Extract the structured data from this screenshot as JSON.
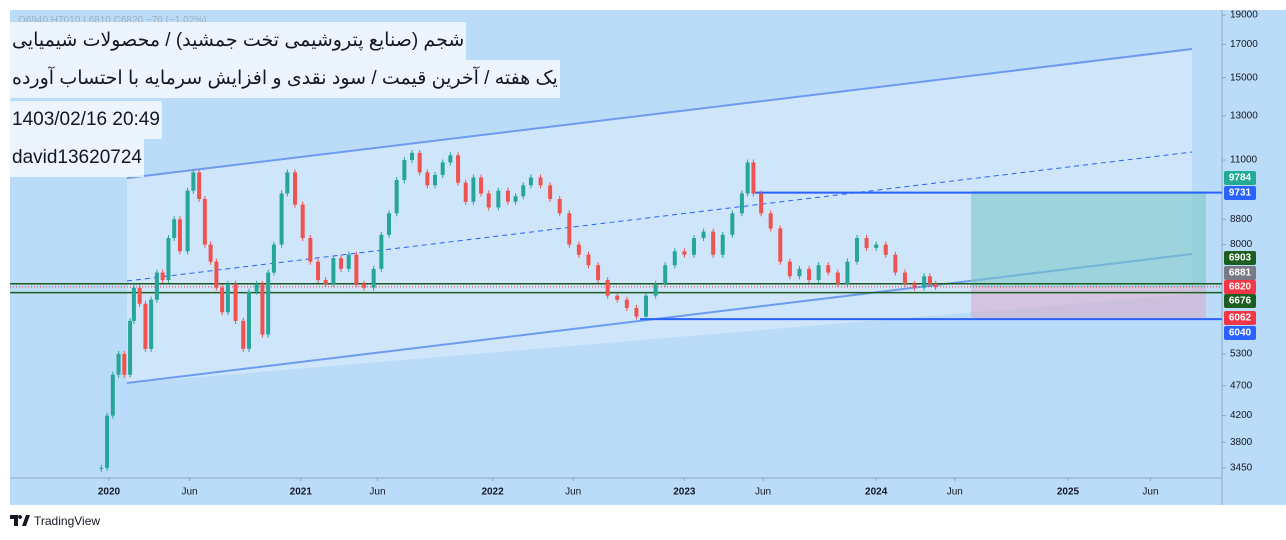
{
  "header": {
    "ohlc": "O6940 H7010 L6810 C6820 −70 (−1.02%)",
    "title": "شجم (صنایع پتروشیمی تخت جمشید) / محصولات شیمیایی",
    "subtitle": "یک هفته / آخرین قیمت / سود نقدی و افزایش سرمایه با احتساب آورده",
    "datetime": "1403/02/16 20:49",
    "author": "david13620724"
  },
  "chart_data": {
    "type": "candlestick",
    "x": [
      2019.96,
      2019.99,
      2020.02,
      2020.05,
      2020.08,
      2020.11,
      2020.13,
      2020.16,
      2020.19,
      2020.22,
      2020.25,
      2020.28,
      2020.31,
      2020.34,
      2020.37,
      2020.41,
      2020.44,
      2020.47,
      2020.5,
      2020.53,
      2020.56,
      2020.59,
      2020.62,
      2020.66,
      2020.7,
      2020.73,
      2020.77,
      2020.8,
      2020.83,
      2020.86,
      2020.9,
      2020.93,
      2020.97,
      2021.01,
      2021.05,
      2021.09,
      2021.13,
      2021.17,
      2021.21,
      2021.25,
      2021.29,
      2021.33,
      2021.38,
      2021.42,
      2021.46,
      2021.5,
      2021.54,
      2021.58,
      2021.62,
      2021.66,
      2021.7,
      2021.74,
      2021.78,
      2021.82,
      2021.86,
      2021.9,
      2021.94,
      2021.98,
      2022.03,
      2022.08,
      2022.12,
      2022.16,
      2022.2,
      2022.25,
      2022.3,
      2022.35,
      2022.4,
      2022.45,
      2022.5,
      2022.55,
      2022.6,
      2022.65,
      2022.7,
      2022.75,
      2022.8,
      2022.85,
      2022.9,
      2022.95,
      2023.0,
      2023.05,
      2023.1,
      2023.15,
      2023.2,
      2023.25,
      2023.3,
      2023.33,
      2023.36,
      2023.4,
      2023.45,
      2023.5,
      2023.55,
      2023.6,
      2023.65,
      2023.7,
      2023.75,
      2023.8,
      2023.85,
      2023.9,
      2023.95,
      2024.0,
      2024.05,
      2024.1,
      2024.15,
      2024.2,
      2024.25,
      2024.28,
      2024.31
    ],
    "values": [
      3450,
      4200,
      4900,
      5300,
      4900,
      6000,
      6800,
      6400,
      5400,
      6500,
      7200,
      7000,
      8200,
      8800,
      7800,
      9800,
      10500,
      9500,
      8000,
      7500,
      6800,
      6200,
      6900,
      6000,
      5400,
      6700,
      6900,
      5700,
      7200,
      8000,
      9700,
      10500,
      9300,
      8200,
      7500,
      7000,
      6900,
      7600,
      7300,
      7700,
      6900,
      6800,
      7300,
      8300,
      9000,
      10200,
      11000,
      11300,
      10500,
      10000,
      10400,
      10900,
      11200,
      10100,
      9400,
      10300,
      9700,
      9200,
      9800,
      9400,
      9600,
      10000,
      10300,
      10000,
      9500,
      9000,
      8000,
      7700,
      7400,
      7000,
      6600,
      6500,
      6300,
      6100,
      6600,
      6900,
      7400,
      7800,
      7700,
      8200,
      8400,
      7700,
      8300,
      9000,
      9700,
      10900,
      9700,
      9000,
      8500,
      7500,
      7100,
      7300,
      7000,
      7400,
      7200,
      6900,
      7500,
      8200,
      7900,
      8000,
      7700,
      7200,
      6900,
      6800,
      7100,
      6900,
      6820
    ],
    "up_color": "#26a69a",
    "down_color": "#ef5350",
    "log_scale": true,
    "ylim": [
      3320,
      19360
    ],
    "yticks": [
      3450,
      3800,
      4200,
      4700,
      5300,
      8000,
      8800,
      11000,
      13000,
      15000,
      17000,
      19000
    ],
    "xlim": [
      2019.484,
      2025.803
    ],
    "xticks": [
      2020,
      {
        "value": 2020.42,
        "label": "Jun"
      },
      2021,
      {
        "value": 2021.4,
        "label": "Jun"
      },
      2022,
      {
        "value": 2022.42,
        "label": "Jun"
      },
      2023,
      {
        "value": 2023.41,
        "label": "Jun"
      },
      2024,
      {
        "value": 2024.41,
        "label": "Jun"
      },
      2025,
      {
        "value": 2025.43,
        "label": "Jun"
      }
    ],
    "price_labels": [
      {
        "value": 9784,
        "color": "#22ab94"
      },
      {
        "value": 9731,
        "color": "#2962ff"
      },
      {
        "value": 6903,
        "color": "#1b5e20"
      },
      {
        "value": 6881,
        "color": "#787b86"
      },
      {
        "value": 6820,
        "color": "#f23645"
      },
      {
        "value": 6676,
        "color": "#1b5e20"
      },
      {
        "value": 6062,
        "color": "#f23645"
      },
      {
        "value": 6040,
        "color": "#2962ff"
      }
    ]
  },
  "footer": {
    "brand": "TradingView"
  }
}
